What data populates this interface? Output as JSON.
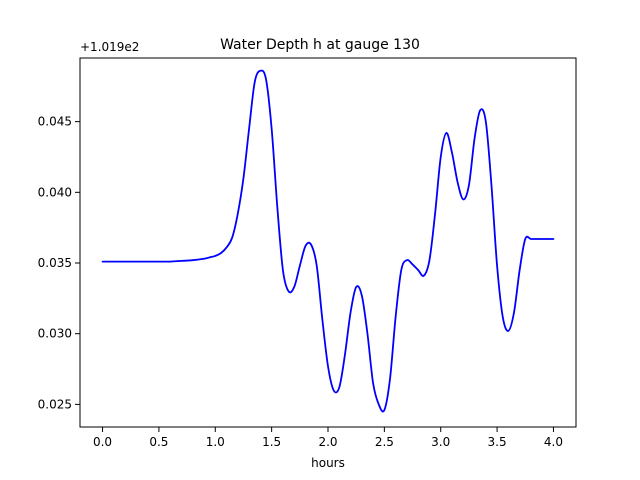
{
  "chart_data": {
    "type": "line",
    "title": "Water Depth h at gauge 130",
    "xlabel": "hours",
    "ylabel": "",
    "offset_text": "+1.019e2",
    "xlim": [
      -0.2,
      4.2
    ],
    "ylim": [
      0.0234,
      0.0495
    ],
    "x_ticks": [
      0.0,
      0.5,
      1.0,
      1.5,
      2.0,
      2.5,
      3.0,
      3.5,
      4.0
    ],
    "x_tick_labels": [
      "0.0",
      "0.5",
      "1.0",
      "1.5",
      "2.0",
      "2.5",
      "3.0",
      "3.5",
      "4.0"
    ],
    "y_ticks": [
      0.025,
      0.03,
      0.035,
      0.04,
      0.045
    ],
    "y_tick_labels": [
      "0.025",
      "0.030",
      "0.035",
      "0.040",
      "0.045"
    ],
    "grid": false,
    "legend": "none",
    "line_color": "#0000ff",
    "series": [
      {
        "x": [
          0.0,
          0.1,
          0.2,
          0.3,
          0.4,
          0.5,
          0.6,
          0.7,
          0.8,
          0.9,
          0.95,
          1.0,
          1.05,
          1.1,
          1.15,
          1.2,
          1.25,
          1.3,
          1.35,
          1.4,
          1.45,
          1.5,
          1.55,
          1.6,
          1.65,
          1.7,
          1.75,
          1.8,
          1.85,
          1.9,
          1.95,
          2.0,
          2.05,
          2.1,
          2.15,
          2.2,
          2.25,
          2.3,
          2.35,
          2.4,
          2.45,
          2.5,
          2.55,
          2.6,
          2.65,
          2.7,
          2.75,
          2.8,
          2.85,
          2.9,
          2.95,
          3.0,
          3.05,
          3.1,
          3.15,
          3.2,
          3.25,
          3.3,
          3.35,
          3.4,
          3.45,
          3.5,
          3.55,
          3.6,
          3.65,
          3.7,
          3.75,
          3.8,
          3.85,
          3.9,
          3.95,
          4.0
        ],
        "y": [
          0.0351,
          0.0351,
          0.0351,
          0.0351,
          0.0351,
          0.0351,
          0.0351,
          0.03515,
          0.0352,
          0.0353,
          0.0354,
          0.0355,
          0.0357,
          0.0361,
          0.0368,
          0.0385,
          0.041,
          0.0445,
          0.0478,
          0.0486,
          0.048,
          0.0445,
          0.039,
          0.0345,
          0.033,
          0.0333,
          0.0348,
          0.0362,
          0.0363,
          0.0348,
          0.031,
          0.0277,
          0.026,
          0.0262,
          0.0285,
          0.0315,
          0.0333,
          0.0327,
          0.03,
          0.0265,
          0.025,
          0.0246,
          0.0268,
          0.0312,
          0.0345,
          0.0352,
          0.0349,
          0.0345,
          0.0341,
          0.0352,
          0.0385,
          0.0425,
          0.0442,
          0.0428,
          0.0407,
          0.0395,
          0.0405,
          0.0438,
          0.0458,
          0.045,
          0.0405,
          0.0348,
          0.0312,
          0.0302,
          0.0315,
          0.0345,
          0.0367,
          0.0367,
          0.0367,
          0.0367,
          0.0367,
          0.0367
        ]
      }
    ]
  }
}
